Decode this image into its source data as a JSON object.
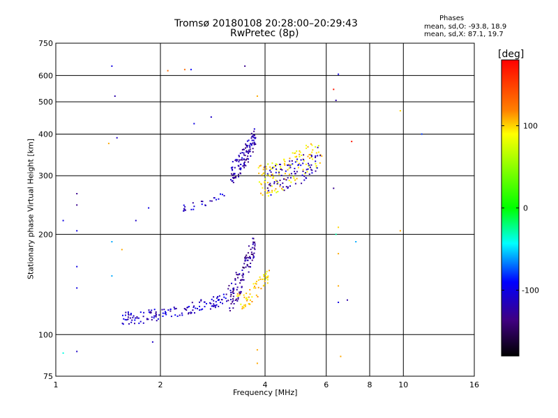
{
  "title": {
    "line1": "Tromsø 20180108 20:28:00–20:29:43",
    "line2": "RwPretec (8p)"
  },
  "stats": {
    "header": "Phases",
    "o_line": "mean, sd,O: -93.8, 18.9",
    "x_line": "mean, sd,X:  87.1, 19.7"
  },
  "chart_data": {
    "type": "scatter",
    "xlabel": "Frequency [MHz]",
    "ylabel": "Stationary phase Virtual Height [km]",
    "xscale": "log",
    "yscale": "log",
    "xlim": [
      1,
      16
    ],
    "ylim": [
      75,
      750
    ],
    "x_ticks": [
      1,
      2,
      4,
      6,
      8,
      10,
      16
    ],
    "y_ticks": [
      75,
      100,
      200,
      300,
      400,
      500,
      600,
      750
    ],
    "grid": true,
    "colorbar": {
      "label": "[deg]",
      "range": [
        -180,
        180
      ],
      "ticks": [
        100,
        0,
        -100
      ]
    },
    "trace_segments": [
      {
        "name": "o-lower",
        "x0": 1.55,
        "x1": 3.1,
        "h0": 112,
        "h1": 128,
        "phase": -110,
        "n": 140,
        "spread": 5
      },
      {
        "name": "o-cusp-lower",
        "x0": 3.1,
        "x1": 3.75,
        "h0": 128,
        "h1": 190,
        "phase": -125,
        "n": 110,
        "spread": 14
      },
      {
        "name": "x-lower",
        "x0": 3.3,
        "x1": 4.1,
        "h0": 125,
        "h1": 150,
        "phase": 100,
        "n": 60,
        "spread": 8
      },
      {
        "name": "o-upper-low",
        "x0": 2.3,
        "x1": 3.1,
        "h0": 240,
        "h1": 265,
        "phase": -110,
        "n": 25,
        "spread": 6
      },
      {
        "name": "o-upper",
        "x0": 3.2,
        "x1": 3.75,
        "h0": 310,
        "h1": 395,
        "phase": -120,
        "n": 120,
        "spread": 25
      },
      {
        "name": "x-upper",
        "x0": 3.8,
        "x1": 5.8,
        "h0": 290,
        "h1": 360,
        "phase": 95,
        "n": 130,
        "spread": 35
      },
      {
        "name": "o-upper-high",
        "x0": 4.0,
        "x1": 5.8,
        "h0": 290,
        "h1": 340,
        "phase": -115,
        "n": 90,
        "spread": 30
      }
    ],
    "scattered_points": [
      {
        "x": 1.45,
        "y": 640,
        "phase": -100
      },
      {
        "x": 1.48,
        "y": 520,
        "phase": -120
      },
      {
        "x": 1.5,
        "y": 390,
        "phase": -110
      },
      {
        "x": 1.42,
        "y": 375,
        "phase": 110
      },
      {
        "x": 1.15,
        "y": 265,
        "phase": -130
      },
      {
        "x": 1.15,
        "y": 245,
        "phase": -130
      },
      {
        "x": 1.05,
        "y": 220,
        "phase": -100
      },
      {
        "x": 1.15,
        "y": 205,
        "phase": -100
      },
      {
        "x": 1.7,
        "y": 220,
        "phase": -110
      },
      {
        "x": 1.85,
        "y": 240,
        "phase": -100
      },
      {
        "x": 2.1,
        "y": 620,
        "phase": 130
      },
      {
        "x": 2.35,
        "y": 625,
        "phase": 130
      },
      {
        "x": 2.45,
        "y": 625,
        "phase": -90
      },
      {
        "x": 3.5,
        "y": 640,
        "phase": -130
      },
      {
        "x": 6.5,
        "y": 605,
        "phase": -100
      },
      {
        "x": 6.3,
        "y": 545,
        "phase": 170
      },
      {
        "x": 6.4,
        "y": 505,
        "phase": -120
      },
      {
        "x": 9.8,
        "y": 470,
        "phase": 100
      },
      {
        "x": 11.3,
        "y": 400,
        "phase": -80
      },
      {
        "x": 7.1,
        "y": 380,
        "phase": 170
      },
      {
        "x": 6.3,
        "y": 275,
        "phase": -130
      },
      {
        "x": 7.3,
        "y": 190,
        "phase": -60
      },
      {
        "x": 6.5,
        "y": 210,
        "phase": 100
      },
      {
        "x": 6.4,
        "y": 200,
        "phase": -30
      },
      {
        "x": 6.5,
        "y": 175,
        "phase": 110
      },
      {
        "x": 6.5,
        "y": 140,
        "phase": 110
      },
      {
        "x": 6.5,
        "y": 125,
        "phase": -100
      },
      {
        "x": 6.9,
        "y": 127,
        "phase": -120
      },
      {
        "x": 9.8,
        "y": 205,
        "phase": 110
      },
      {
        "x": 6.6,
        "y": 86,
        "phase": 110
      },
      {
        "x": 1.9,
        "y": 95,
        "phase": -110
      },
      {
        "x": 1.15,
        "y": 89,
        "phase": -110
      },
      {
        "x": 1.05,
        "y": 88,
        "phase": -40
      },
      {
        "x": 1.15,
        "y": 160,
        "phase": -100
      },
      {
        "x": 1.15,
        "y": 138,
        "phase": -100
      },
      {
        "x": 1.45,
        "y": 190,
        "phase": -60
      },
      {
        "x": 1.45,
        "y": 150,
        "phase": -60
      },
      {
        "x": 1.55,
        "y": 180,
        "phase": 110
      },
      {
        "x": 3.8,
        "y": 90,
        "phase": 110
      },
      {
        "x": 3.8,
        "y": 82,
        "phase": 110
      },
      {
        "x": 3.8,
        "y": 520,
        "phase": 110
      },
      {
        "x": 2.8,
        "y": 450,
        "phase": -110
      },
      {
        "x": 2.5,
        "y": 430,
        "phase": -100
      }
    ]
  }
}
